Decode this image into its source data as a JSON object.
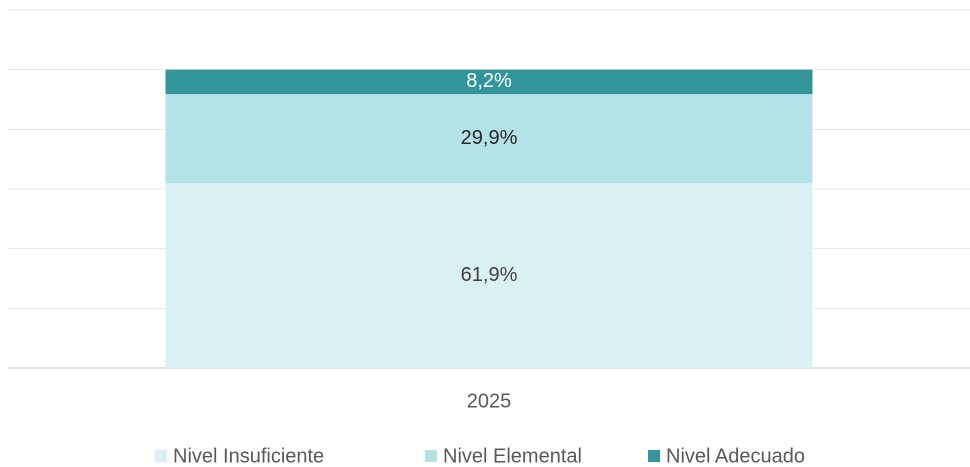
{
  "chart_data": {
    "type": "stacked_bar",
    "categories": [
      "2025"
    ],
    "series": [
      {
        "name": "Nivel Insuficiente",
        "color": "#daf1f3",
        "label_color": "#404040",
        "values": [
          61.9
        ],
        "value_labels": [
          "61,9%"
        ]
      },
      {
        "name": "Nivel Elemental",
        "color": "#b3e3e8",
        "label_color": "#262626",
        "values": [
          29.9
        ],
        "value_labels": [
          "29,9%"
        ]
      },
      {
        "name": "Nivel Adecuado",
        "color": "#31959a",
        "label_color": "#ffffff",
        "values": [
          8.2
        ],
        "value_labels": [
          "8,2%"
        ]
      }
    ],
    "ylim": [
      0,
      120
    ],
    "yticks": [
      0,
      20,
      40,
      60,
      80,
      100,
      120
    ],
    "grid": true,
    "legend": "bottom"
  }
}
